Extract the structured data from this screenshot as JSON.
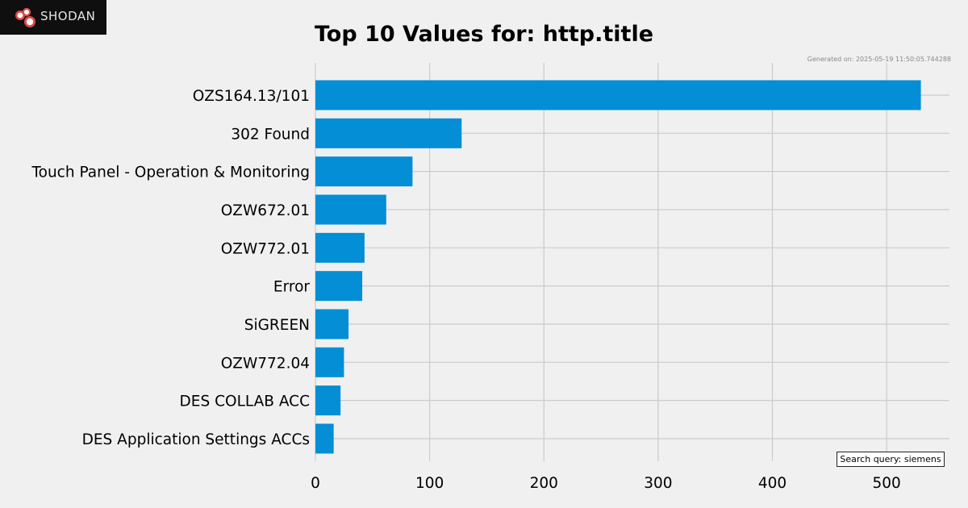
{
  "brand": {
    "name": "Shodan",
    "display": "SHODAN"
  },
  "header": {
    "title": "Top 10 Values for: http.title",
    "generated": "Generated on: 2025-05-19 11:50:05.744288"
  },
  "footer": {
    "query_label": "Search query: siemens"
  },
  "colors": {
    "bar": "#038ed6",
    "grid": "#cbcbcb",
    "background": "#f0f0f0",
    "logo_bg": "#0f0f0f",
    "logo_accent": "#e04848"
  },
  "chart_data": {
    "type": "bar",
    "orientation": "horizontal",
    "title": "Top 10 Values for: http.title",
    "categories": [
      "OZS164.13/101",
      "302 Found",
      "Touch Panel - Operation & Monitoring",
      "OZW672.01",
      "OZW772.01",
      "Error",
      "SiGREEN",
      "OZW772.04",
      "DES COLLAB ACC",
      "DES Application Settings ACCs"
    ],
    "values": [
      530,
      128,
      85,
      62,
      43,
      41,
      29,
      25,
      22,
      16
    ],
    "xlim": [
      0,
      555
    ],
    "xticks": [
      0,
      100,
      200,
      300,
      400,
      500
    ],
    "grid": true,
    "xlabel": "",
    "ylabel": ""
  }
}
